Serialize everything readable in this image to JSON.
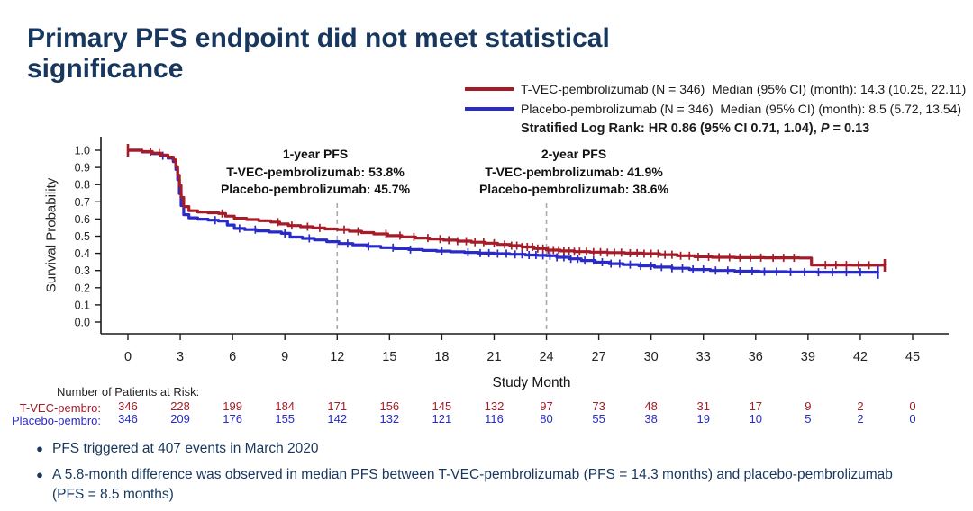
{
  "slide": {
    "title": "Primary PFS endpoint did not meet statistical significance",
    "bullets": [
      "PFS triggered at 407 events in March 2020",
      "A 5.8-month difference was observed in median PFS between T-VEC-pembrolizumab (PFS = 14.3 months) and placebo-pembrolizumab (PFS = 8.5 months)"
    ]
  },
  "legend": {
    "entries": [
      {
        "label": "T-VEC-pembrolizumab (N = 346)  Median (95% CI) (month): 14.3 (10.25, 22.11)",
        "color": "#A51B28"
      },
      {
        "label": "Placebo-pembrolizumab (N = 346)  Median (95% CI) (month): 8.5 (5.72, 13.54)",
        "color": "#2A2AC8"
      }
    ],
    "stratified": {
      "prefix": "Stratified Log Rank: HR 0.86 (95% CI 0.71, 1.04), ",
      "p": "P",
      "suffix": " = 0.13"
    }
  },
  "chart_data": {
    "type": "line",
    "subtype": "kaplan-meier-step",
    "title": "",
    "xlabel": "Study Month",
    "ylabel": "Survival Probability",
    "xlim": [
      0,
      45
    ],
    "ylim": [
      0.0,
      1.0
    ],
    "xticks": [
      0,
      3,
      6,
      9,
      12,
      15,
      18,
      21,
      24,
      27,
      30,
      33,
      36,
      39,
      42,
      45
    ],
    "yticks": [
      0.0,
      0.1,
      0.2,
      0.3,
      0.4,
      0.5,
      0.6,
      0.7,
      0.8,
      0.9,
      1.0
    ],
    "grid": false,
    "legend_position": "top-right",
    "reference_lines_x": [
      12,
      24
    ],
    "annotations": [
      {
        "x": 12,
        "title": "1-year PFS",
        "lines": [
          "T-VEC-pembrolizumab: 53.8%",
          "Placebo-pembrolizumab: 45.7%"
        ]
      },
      {
        "x": 24,
        "title": "2-year PFS",
        "lines": [
          "T-VEC-pembrolizumab: 41.9%",
          "Placebo-pembrolizumab: 38.6%"
        ]
      }
    ],
    "stats": {
      "test": "Stratified Log Rank",
      "hr": 0.86,
      "hr_ci": [
        0.71,
        1.04
      ],
      "p_value": 0.13
    },
    "series": [
      {
        "name": "T-VEC-pembrolizumab",
        "color": "#A51B28",
        "n": 346,
        "median_months": 14.3,
        "median_ci": [
          10.25,
          22.11
        ],
        "pfs_12mo": 0.538,
        "pfs_24mo": 0.419,
        "steps": [
          [
            0,
            1.0
          ],
          [
            0.8,
            0.992
          ],
          [
            1.4,
            0.983
          ],
          [
            1.9,
            0.972
          ],
          [
            2.3,
            0.96
          ],
          [
            2.6,
            0.944
          ],
          [
            2.75,
            0.905
          ],
          [
            2.85,
            0.855
          ],
          [
            2.95,
            0.795
          ],
          [
            3.05,
            0.725
          ],
          [
            3.2,
            0.672
          ],
          [
            3.5,
            0.648
          ],
          [
            4.0,
            0.641
          ],
          [
            4.6,
            0.636
          ],
          [
            5.2,
            0.632
          ],
          [
            5.6,
            0.617
          ],
          [
            6.1,
            0.604
          ],
          [
            6.8,
            0.597
          ],
          [
            7.5,
            0.59
          ],
          [
            8.2,
            0.582
          ],
          [
            8.7,
            0.571
          ],
          [
            9.2,
            0.562
          ],
          [
            9.9,
            0.555
          ],
          [
            10.6,
            0.548
          ],
          [
            11.3,
            0.542
          ],
          [
            12.0,
            0.538
          ],
          [
            12.7,
            0.529
          ],
          [
            13.4,
            0.521
          ],
          [
            14.1,
            0.513
          ],
          [
            14.9,
            0.503
          ],
          [
            15.7,
            0.496
          ],
          [
            16.5,
            0.489
          ],
          [
            17.3,
            0.483
          ],
          [
            18.1,
            0.477
          ],
          [
            18.9,
            0.471
          ],
          [
            19.7,
            0.465
          ],
          [
            20.5,
            0.459
          ],
          [
            21.2,
            0.452
          ],
          [
            21.9,
            0.445
          ],
          [
            22.6,
            0.437
          ],
          [
            23.3,
            0.428
          ],
          [
            24.0,
            0.419
          ],
          [
            24.8,
            0.414
          ],
          [
            25.6,
            0.41
          ],
          [
            26.5,
            0.407
          ],
          [
            27.5,
            0.404
          ],
          [
            28.5,
            0.401
          ],
          [
            29.5,
            0.398
          ],
          [
            30.5,
            0.392
          ],
          [
            31.5,
            0.386
          ],
          [
            32.5,
            0.38
          ],
          [
            33.5,
            0.377
          ],
          [
            34.8,
            0.375
          ],
          [
            36.5,
            0.374
          ],
          [
            38.5,
            0.373
          ],
          [
            39.2,
            0.332
          ],
          [
            41.5,
            0.331
          ],
          [
            43.4,
            0.33
          ]
        ],
        "censor_months": [
          0,
          1.3,
          1.8,
          5.4,
          8.6,
          9.4,
          10.3,
          11.0,
          12.4,
          13.2,
          14.8,
          15.6,
          16.4,
          17.2,
          17.9,
          18.4,
          18.9,
          19.4,
          19.9,
          20.4,
          21.0,
          21.6,
          22.0,
          22.3,
          22.6,
          22.9,
          23.2,
          23.5,
          23.8,
          24.1,
          24.4,
          24.7,
          25.0,
          25.3,
          25.6,
          25.9,
          26.3,
          26.7,
          27.1,
          27.5,
          27.9,
          28.3,
          28.8,
          29.2,
          29.6,
          30.0,
          30.4,
          30.8,
          31.2,
          31.7,
          32.2,
          32.7,
          33.3,
          33.9,
          34.5,
          35.1,
          35.7,
          36.3,
          37.0,
          37.6,
          38.2,
          40.0,
          40.6,
          41.2,
          41.9,
          42.5,
          43.4
        ]
      },
      {
        "name": "Placebo-pembrolizumab",
        "color": "#2A2AC8",
        "n": 346,
        "median_months": 8.5,
        "median_ci": [
          5.72,
          13.54
        ],
        "pfs_12mo": 0.457,
        "pfs_24mo": 0.386,
        "steps": [
          [
            0,
            1.0
          ],
          [
            0.8,
            0.99
          ],
          [
            1.4,
            0.98
          ],
          [
            1.9,
            0.968
          ],
          [
            2.3,
            0.954
          ],
          [
            2.6,
            0.934
          ],
          [
            2.75,
            0.888
          ],
          [
            2.85,
            0.828
          ],
          [
            2.95,
            0.748
          ],
          [
            3.05,
            0.678
          ],
          [
            3.2,
            0.625
          ],
          [
            3.5,
            0.607
          ],
          [
            4.0,
            0.599
          ],
          [
            4.6,
            0.593
          ],
          [
            5.2,
            0.588
          ],
          [
            5.7,
            0.565
          ],
          [
            6.1,
            0.545
          ],
          [
            6.7,
            0.538
          ],
          [
            7.4,
            0.531
          ],
          [
            8.1,
            0.524
          ],
          [
            8.8,
            0.516
          ],
          [
            9.3,
            0.495
          ],
          [
            10.0,
            0.487
          ],
          [
            10.7,
            0.478
          ],
          [
            11.4,
            0.468
          ],
          [
            12.1,
            0.457
          ],
          [
            12.9,
            0.449
          ],
          [
            13.7,
            0.441
          ],
          [
            14.5,
            0.433
          ],
          [
            15.3,
            0.427
          ],
          [
            16.1,
            0.422
          ],
          [
            16.9,
            0.417
          ],
          [
            17.7,
            0.413
          ],
          [
            18.5,
            0.409
          ],
          [
            19.3,
            0.405
          ],
          [
            20.1,
            0.401
          ],
          [
            21.0,
            0.398
          ],
          [
            21.9,
            0.394
          ],
          [
            22.8,
            0.39
          ],
          [
            23.5,
            0.388
          ],
          [
            24.0,
            0.386
          ],
          [
            24.6,
            0.377
          ],
          [
            25.3,
            0.368
          ],
          [
            26.0,
            0.358
          ],
          [
            26.8,
            0.348
          ],
          [
            27.6,
            0.34
          ],
          [
            28.4,
            0.334
          ],
          [
            29.3,
            0.327
          ],
          [
            30.2,
            0.32
          ],
          [
            31.2,
            0.313
          ],
          [
            32.2,
            0.306
          ],
          [
            33.4,
            0.3
          ],
          [
            34.8,
            0.296
          ],
          [
            36.2,
            0.293
          ],
          [
            37.8,
            0.291
          ],
          [
            39.5,
            0.29
          ],
          [
            43.0,
            0.289
          ]
        ],
        "censor_months": [
          2.0,
          5.0,
          6.4,
          7.3,
          9.0,
          10.4,
          12.6,
          13.8,
          15.2,
          16.2,
          18.0,
          19.5,
          20.2,
          20.7,
          21.2,
          21.7,
          22.2,
          22.6,
          23.0,
          23.4,
          23.8,
          24.2,
          24.6,
          25.0,
          25.4,
          25.8,
          26.2,
          26.7,
          27.2,
          27.7,
          28.2,
          28.8,
          29.4,
          30.0,
          30.6,
          31.2,
          31.8,
          32.4,
          33.0,
          33.7,
          34.4,
          35.1,
          35.8,
          36.5,
          37.2,
          38.0,
          38.8,
          39.6,
          40.4,
          41.2,
          42.0,
          43.0
        ]
      }
    ]
  },
  "risk_table": {
    "header": "Number of Patients at Risk:",
    "months": [
      0,
      3,
      6,
      9,
      12,
      15,
      18,
      21,
      24,
      27,
      30,
      33,
      36,
      39,
      42,
      45
    ],
    "rows": [
      {
        "label": "T-VEC-pembro:",
        "color": "#A51B28",
        "values": [
          346,
          228,
          199,
          184,
          171,
          156,
          145,
          132,
          97,
          73,
          48,
          31,
          17,
          9,
          2,
          0
        ]
      },
      {
        "label": "Placebo-pembro:",
        "color": "#2A2AC8",
        "values": [
          346,
          209,
          176,
          155,
          142,
          132,
          121,
          116,
          80,
          55,
          38,
          19,
          10,
          5,
          2,
          0
        ]
      }
    ]
  },
  "colors": {
    "title_navy": "#17375E",
    "axis_black": "#1a1a1a",
    "reference_gray": "#aaaaaa"
  }
}
